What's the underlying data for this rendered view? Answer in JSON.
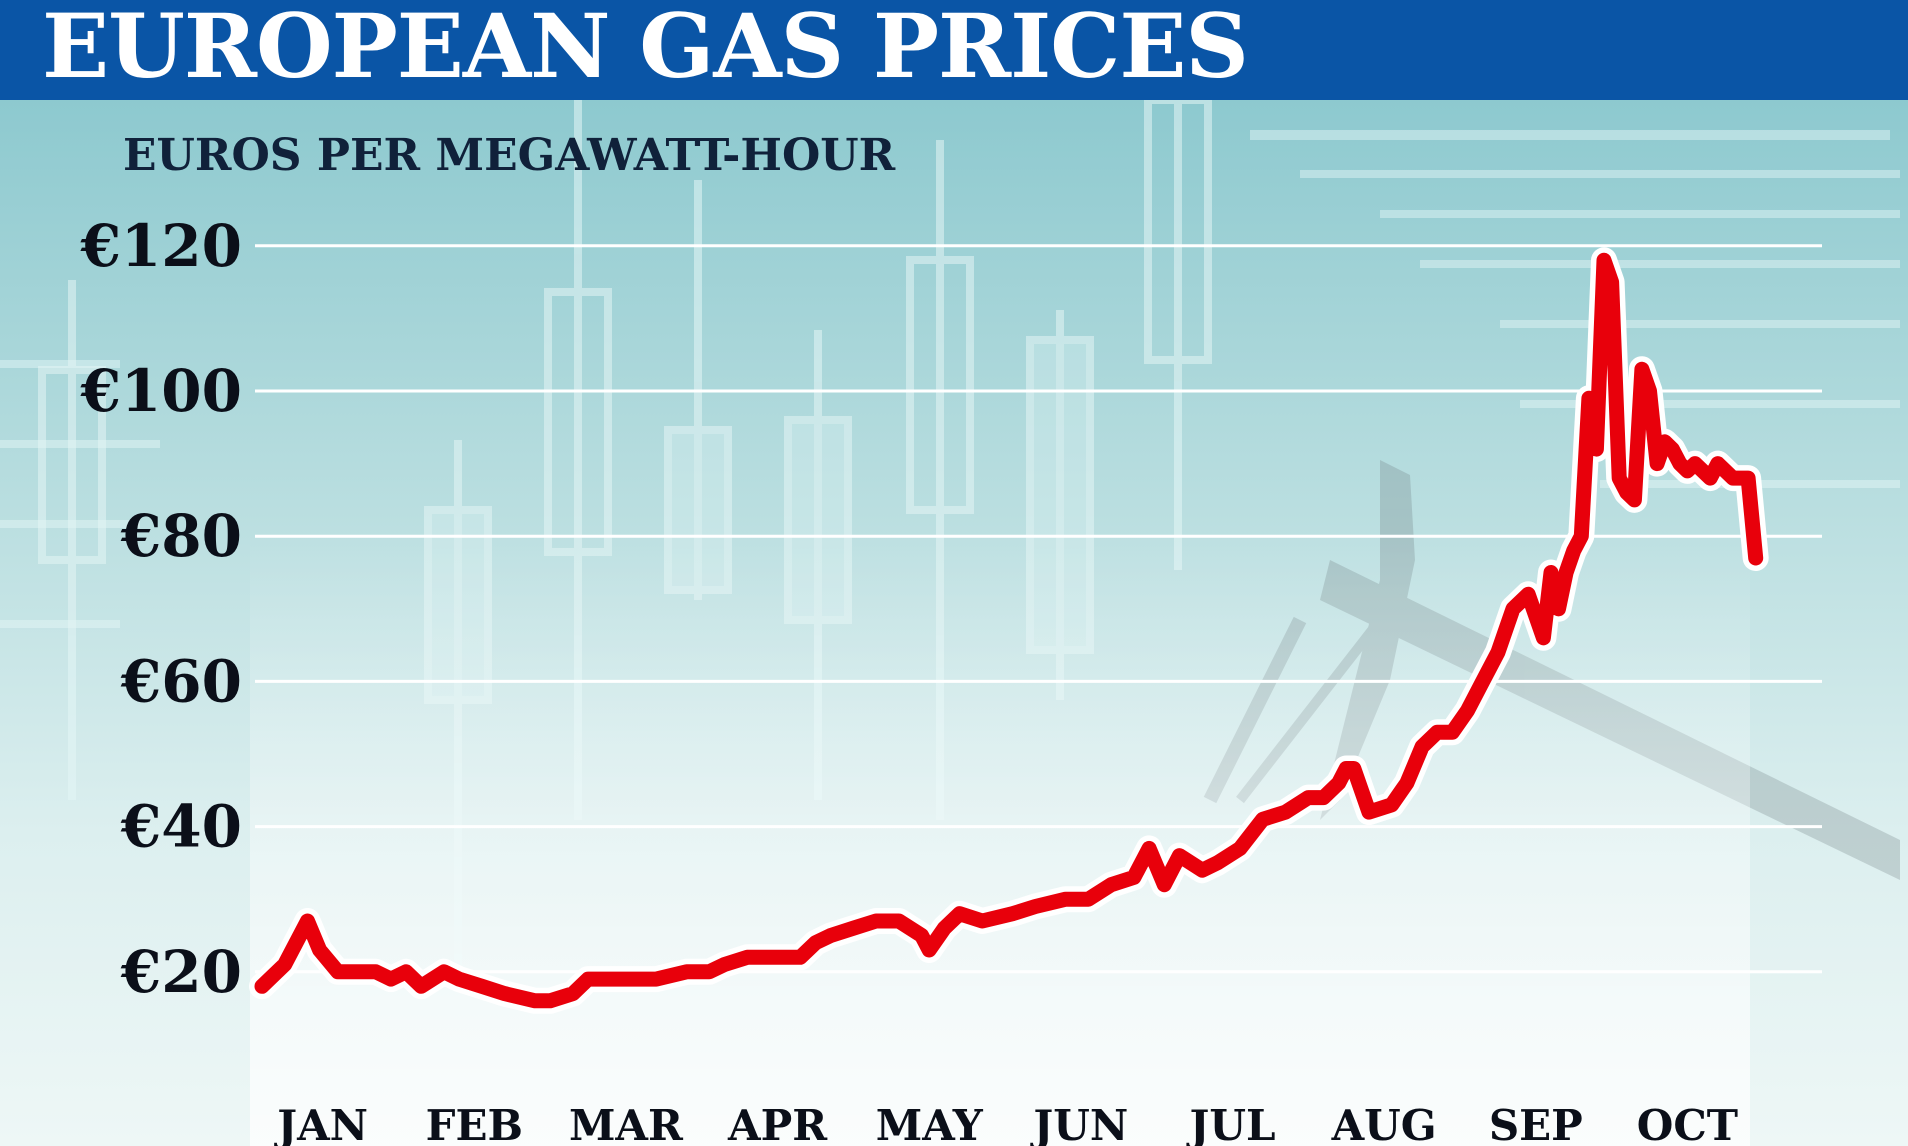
{
  "title": "EUROPEAN GAS PRICES",
  "colors": {
    "title_bar": "#0a55a6",
    "title_text": "#ffffff",
    "line": "#e8000b",
    "line_outline": "#ffffff",
    "grid": "#ffffff"
  },
  "chart_data": {
    "type": "line",
    "title": "EUROPEAN GAS PRICES",
    "ylabel": "EUROS PER MEGAWATT-HOUR",
    "xlabel": "",
    "ylim": [
      0,
      120
    ],
    "yticks": [
      20,
      40,
      60,
      80,
      100,
      120
    ],
    "ytick_labels": [
      "€20",
      "€40",
      "€60",
      "€80",
      "€100",
      "€120"
    ],
    "xlim": [
      0,
      10.05
    ],
    "xticks": [
      0.4,
      1.4,
      2.4,
      3.4,
      4.4,
      5.4,
      6.4,
      7.4,
      8.4,
      9.4
    ],
    "xtick_labels": [
      "JAN",
      "FEB",
      "MAR",
      "APR",
      "MAY",
      "JUN",
      "JUL",
      "AUG",
      "SEP",
      "OCT"
    ],
    "grid": true,
    "legend": "none",
    "series": [
      {
        "x": [
          0.0,
          0.15,
          0.3,
          0.38,
          0.5,
          0.6,
          0.75,
          0.85,
          0.95,
          1.05,
          1.2,
          1.3,
          1.45,
          1.6,
          1.8,
          1.9,
          2.05,
          2.15,
          2.3,
          2.45,
          2.6,
          2.8,
          2.95,
          3.05,
          3.2,
          3.35,
          3.55,
          3.65,
          3.75,
          3.9,
          4.05,
          4.2,
          4.35,
          4.4,
          4.5,
          4.6,
          4.75,
          4.95,
          5.1,
          5.3,
          5.45,
          5.6,
          5.75,
          5.85,
          5.95,
          6.05,
          6.2,
          6.3,
          6.45,
          6.6,
          6.75,
          6.9,
          7.0,
          7.1,
          7.15,
          7.2,
          7.3,
          7.45,
          7.55,
          7.65,
          7.75,
          7.85,
          7.95,
          8.05,
          8.15,
          8.25,
          8.35,
          8.45,
          8.5,
          8.55,
          8.6,
          8.65,
          8.7,
          8.75,
          8.8,
          8.85,
          8.9,
          8.95,
          9.0,
          9.05,
          9.1,
          9.15,
          9.2,
          9.25,
          9.3,
          9.35,
          9.4,
          9.45,
          9.55,
          9.6,
          9.7,
          9.8,
          9.85
        ],
        "values": [
          18,
          21,
          27,
          23,
          20,
          20,
          20,
          19,
          20,
          18,
          20,
          19,
          18,
          17,
          16,
          16,
          17,
          19,
          19,
          19,
          19,
          20,
          20,
          21,
          22,
          22,
          22,
          24,
          25,
          26,
          27,
          27,
          25,
          23,
          26,
          28,
          27,
          28,
          29,
          30,
          30,
          32,
          33,
          37,
          32,
          36,
          34,
          35,
          37,
          41,
          42,
          44,
          44,
          46,
          48,
          48,
          42,
          43,
          46,
          51,
          53,
          53,
          56,
          60,
          64,
          70,
          72,
          66,
          75,
          70,
          75,
          78,
          80,
          99,
          92,
          118,
          115,
          88,
          86,
          85,
          103,
          100,
          90,
          93,
          92,
          90,
          89,
          90,
          88,
          90,
          88,
          88,
          77
        ]
      }
    ]
  }
}
